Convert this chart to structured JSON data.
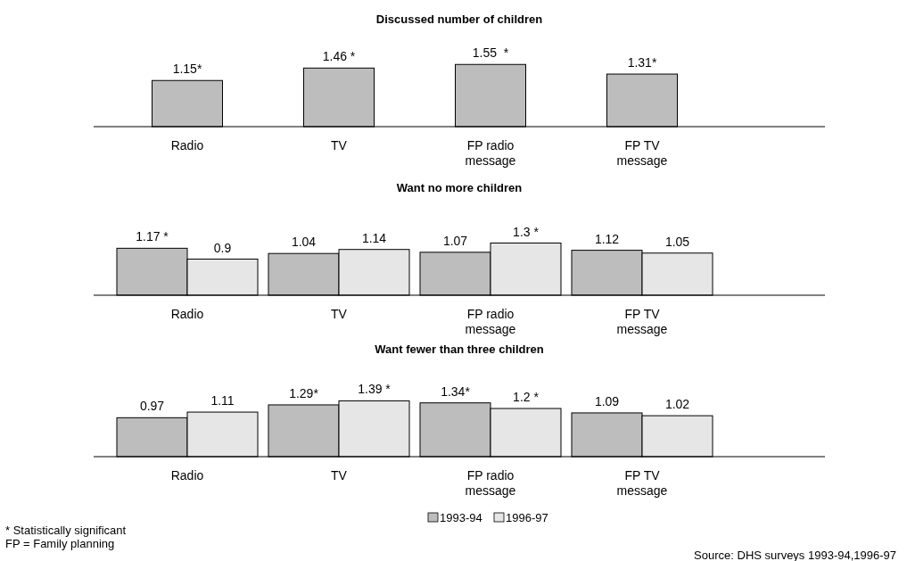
{
  "chart_data": [
    {
      "type": "bar",
      "title": "Discussed number of children",
      "categories": [
        "Radio",
        "TV",
        "FP radio message",
        "FP TV message"
      ],
      "series": [
        {
          "color": "#bdbdbd",
          "values": [
            1.15,
            1.46,
            1.55,
            1.31
          ],
          "value_labels": [
            "1.15*",
            "1.46 *",
            "1.55  *",
            "1.31*"
          ]
        }
      ],
      "legend": false
    },
    {
      "type": "bar",
      "title": "Want no more children",
      "categories": [
        "Radio",
        "TV",
        "FP radio message",
        "FP TV message"
      ],
      "series": [
        {
          "color": "#bdbdbd",
          "values": [
            1.17,
            1.04,
            1.07,
            1.12
          ],
          "value_labels": [
            "1.17 *",
            "1.04",
            "1.07",
            "1.12"
          ]
        },
        {
          "color": "#e6e6e6",
          "values": [
            0.9,
            1.14,
            1.3,
            1.05
          ],
          "value_labels": [
            "0.9",
            "1.14",
            "1.3 *",
            "1.05"
          ]
        }
      ],
      "legend": false
    },
    {
      "type": "bar",
      "title": "Want fewer than three children",
      "categories": [
        "Radio",
        "TV",
        "FP radio message",
        "FP TV message"
      ],
      "series": [
        {
          "name": "1993-94",
          "color": "#bdbdbd",
          "values": [
            0.97,
            1.29,
            1.34,
            1.09
          ],
          "value_labels": [
            "0.97",
            "1.29*",
            "1.34*",
            "1.09"
          ]
        },
        {
          "name": "1996-97",
          "color": "#e6e6e6",
          "values": [
            1.11,
            1.39,
            1.2,
            1.02
          ],
          "value_labels": [
            "1.11",
            "1.39 *",
            "1.2 *",
            "1.02"
          ]
        }
      ],
      "legend": "bottom",
      "annotations": [
        "* Statistically significant",
        "FP = Family planning",
        "Source: DHS surveys 1993-94,1996-97"
      ]
    }
  ]
}
